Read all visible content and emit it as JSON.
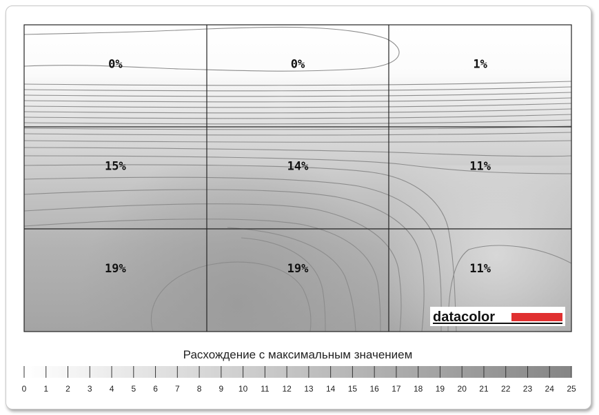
{
  "chart_data": {
    "type": "heatmap",
    "title": "",
    "rows": 3,
    "cols": 3,
    "cells": [
      [
        {
          "value": 0,
          "label": "0%"
        },
        {
          "value": 0,
          "label": "0%"
        },
        {
          "value": 1,
          "label": "1%"
        }
      ],
      [
        {
          "value": 15,
          "label": "15%"
        },
        {
          "value": 14,
          "label": "14%"
        },
        {
          "value": 11,
          "label": "11%"
        }
      ],
      [
        {
          "value": 19,
          "label": "19%"
        },
        {
          "value": 19,
          "label": "19%"
        },
        {
          "value": 11,
          "label": "11%"
        }
      ]
    ],
    "scale": {
      "title": "Расхождение с максимальным значением",
      "min": 0,
      "max": 25,
      "ticks": [
        "0",
        "1",
        "2",
        "3",
        "4",
        "5",
        "6",
        "7",
        "8",
        "9",
        "10",
        "11",
        "12",
        "13",
        "14",
        "15",
        "16",
        "17",
        "18",
        "19",
        "20",
        "21",
        "22",
        "23",
        "24",
        "25"
      ]
    },
    "logo": "datacolor",
    "colors": {
      "low": "#ffffff",
      "high": "#8a8a8a",
      "grid": "#222222",
      "contour": "#8c8c8c",
      "logo_bar": "#e03030"
    }
  }
}
